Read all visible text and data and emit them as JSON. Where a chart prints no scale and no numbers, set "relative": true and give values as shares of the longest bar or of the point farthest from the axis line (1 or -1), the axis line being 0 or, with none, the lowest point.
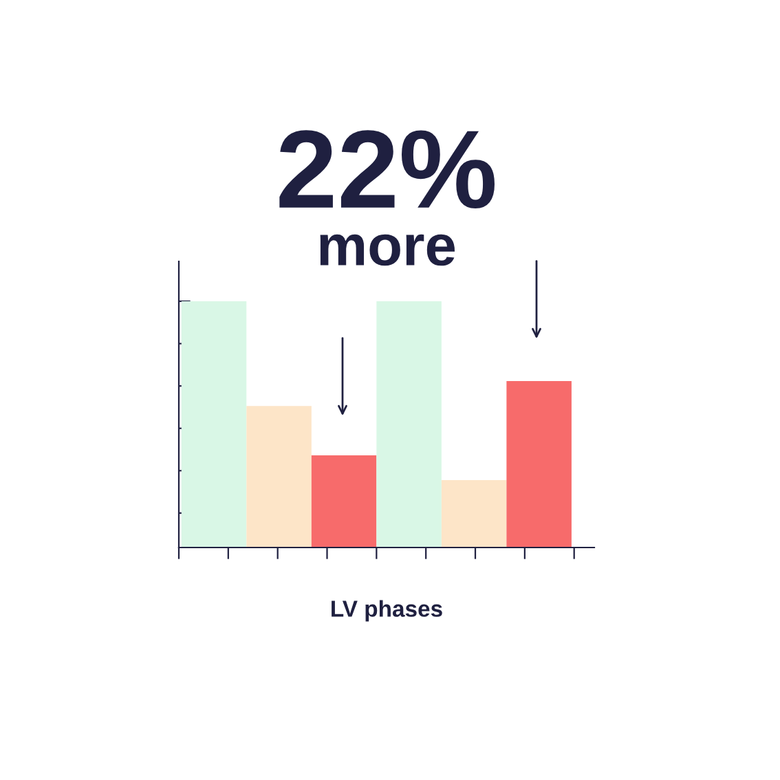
{
  "chart_data": {
    "type": "bar",
    "title": "22%",
    "subtitle": "more",
    "xlabel": "LV phases",
    "categories": [
      null,
      null,
      null,
      null,
      null,
      null
    ],
    "values": [
      1,
      0.575,
      0.374,
      1,
      0.274,
      0.676
    ],
    "colors": [
      "#d9f7e6",
      "#fde5c8",
      "#f76b6b",
      "#d9f7e6",
      "#fde5c8",
      "#f76b6b"
    ],
    "relative": true,
    "grid": false
  }
}
